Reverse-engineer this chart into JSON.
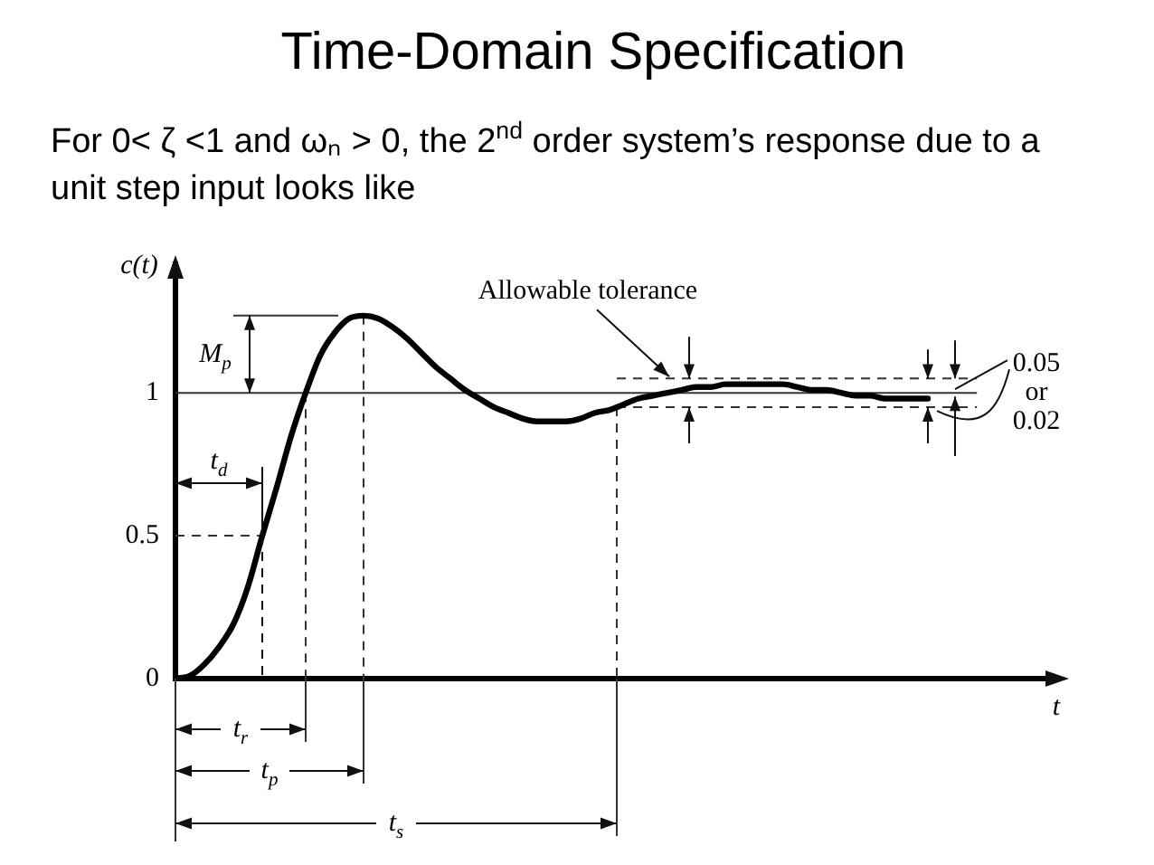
{
  "chart_data": {
    "type": "line",
    "title": "Time-Domain Specification",
    "subtitle": "For 0< ζ <1 and ωₙ > 0, the 2$^{nd}$ order system’s response due to a unit step input looks like",
    "xlabel": "t",
    "ylabel": "c(t)",
    "categories": [
      null,
      null,
      null,
      null,
      null,
      null,
      null,
      null,
      null,
      null,
      null,
      null,
      null,
      null,
      null,
      null,
      null,
      null,
      null,
      null,
      null,
      null,
      null,
      null,
      null,
      null,
      null,
      null,
      null,
      null,
      null,
      null,
      null,
      null,
      null,
      null,
      null,
      null,
      null,
      null,
      null,
      null,
      null,
      null,
      null,
      null,
      null,
      null,
      null,
      null,
      null,
      null,
      null,
      null,
      null,
      null,
      null,
      null,
      null,
      null,
      null,
      null
    ],
    "values": [
      0,
      0.01,
      0.05,
      0.11,
      0.19,
      0.32,
      0.5,
      0.67,
      0.85,
      1,
      1.13,
      1.21,
      1.26,
      1.27,
      1.26,
      1.23,
      1.19,
      1.14,
      1.09,
      1.05,
      1.01,
      0.98,
      0.95,
      0.93,
      0.91,
      0.9,
      0.9,
      0.9,
      0.91,
      0.93,
      0.94,
      0.96,
      0.98,
      0.99,
      1,
      1.01,
      1.02,
      1.02,
      1.03,
      1.03,
      1.03,
      1.03,
      1.03,
      1.02,
      1.01,
      1.01,
      1,
      0.99,
      0.99,
      0.98,
      0.98,
      0.98,
      0.98,
      null,
      null,
      null,
      null,
      null,
      null,
      null,
      null,
      null
    ],
    "color": "#000000",
    "ylim": [
      0,
      1.45
    ],
    "yticks": [
      0,
      0.5,
      1
    ],
    "tick_labels": "y",
    "ref_lines": [
      {
        "axis": "y",
        "value": 1
      },
      {
        "axis": "y",
        "value": 1.05,
        "line_style": "dashed",
        "label": "Allowable tolerance"
      },
      {
        "axis": "y",
        "value": 0.95,
        "line_style": "dashed"
      },
      {
        "axis": "y",
        "value": 0.5,
        "line_style": "dashed"
      },
      {
        "axis": "y",
        "value": 1.27
      }
    ],
    "annotations": [
      "M$_{p}$",
      "t$_{d}$",
      "t$_{r}$",
      "t$_{p}$",
      "t$_{s}$",
      "0.05 or 0.02"
    ]
  }
}
